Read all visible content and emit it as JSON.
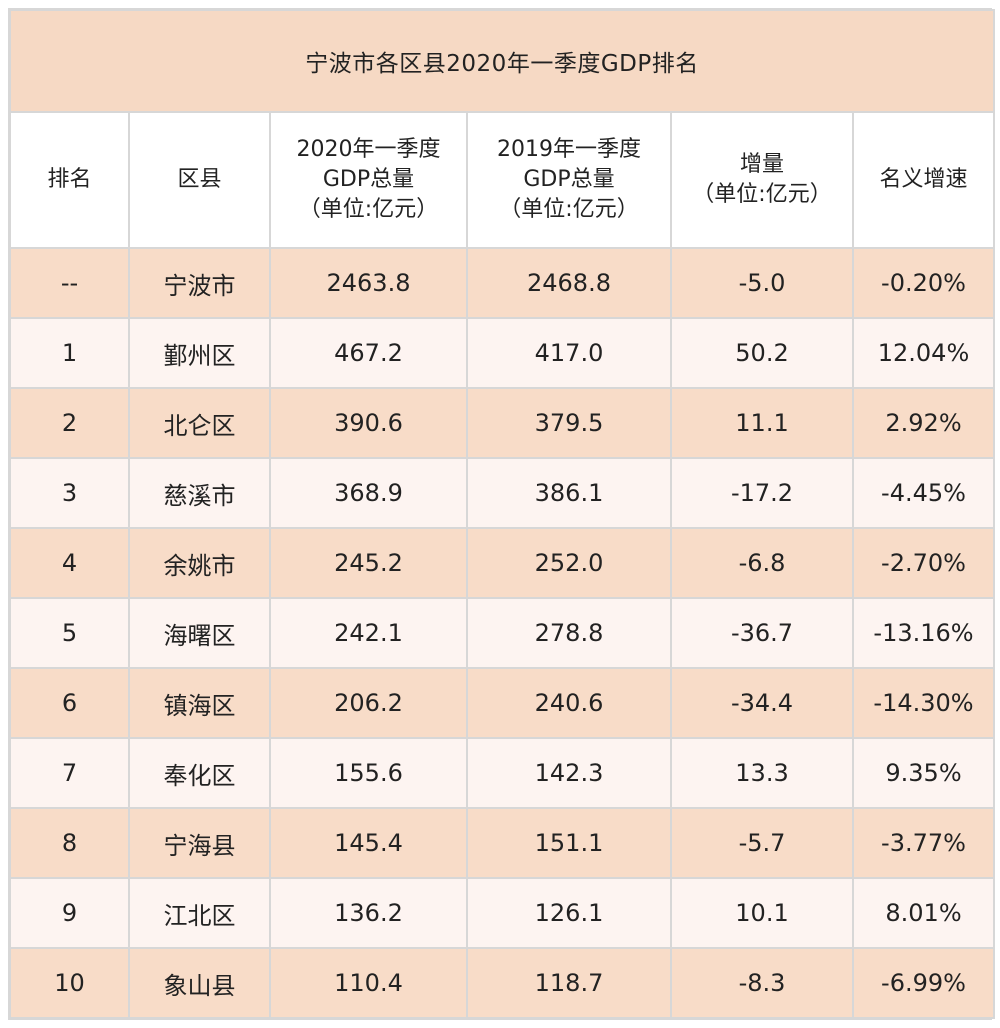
{
  "title": "宁波市各区县2020年一季度GDP排名",
  "headers": {
    "rank": "排名",
    "district": "区县",
    "gdp2020_line1": "2020年一季度",
    "gdp2020_line2": "GDP总量",
    "gdp2020_line3": "（单位:亿元）",
    "gdp2019_line1": "2019年一季度",
    "gdp2019_line2": "GDP总量",
    "gdp2019_line3": "（单位:亿元）",
    "increase_line1": "增量",
    "increase_line2": "（单位:亿元）",
    "growth": "名义增速"
  },
  "rows": [
    {
      "rank": "--",
      "district": "宁波市",
      "gdp2020": "2463.8",
      "gdp2019": "2468.8",
      "increase": "-5.0",
      "growth": "-0.20%"
    },
    {
      "rank": "1",
      "district": "鄞州区",
      "gdp2020": "467.2",
      "gdp2019": "417.0",
      "increase": "50.2",
      "growth": "12.04%"
    },
    {
      "rank": "2",
      "district": "北仑区",
      "gdp2020": "390.6",
      "gdp2019": "379.5",
      "increase": "11.1",
      "growth": "2.92%"
    },
    {
      "rank": "3",
      "district": "慈溪市",
      "gdp2020": "368.9",
      "gdp2019": "386.1",
      "increase": "-17.2",
      "growth": "-4.45%"
    },
    {
      "rank": "4",
      "district": "余姚市",
      "gdp2020": "245.2",
      "gdp2019": "252.0",
      "increase": "-6.8",
      "growth": "-2.70%"
    },
    {
      "rank": "5",
      "district": "海曙区",
      "gdp2020": "242.1",
      "gdp2019": "278.8",
      "increase": "-36.7",
      "growth": "-13.16%"
    },
    {
      "rank": "6",
      "district": "镇海区",
      "gdp2020": "206.2",
      "gdp2019": "240.6",
      "increase": "-34.4",
      "growth": "-14.30%"
    },
    {
      "rank": "7",
      "district": "奉化区",
      "gdp2020": "155.6",
      "gdp2019": "142.3",
      "increase": "13.3",
      "growth": "9.35%"
    },
    {
      "rank": "8",
      "district": "宁海县",
      "gdp2020": "145.4",
      "gdp2019": "151.1",
      "increase": "-5.7",
      "growth": "-3.77%"
    },
    {
      "rank": "9",
      "district": "江北区",
      "gdp2020": "136.2",
      "gdp2019": "126.1",
      "increase": "10.1",
      "growth": "8.01%"
    },
    {
      "rank": "10",
      "district": "象山县",
      "gdp2020": "110.4",
      "gdp2019": "118.7",
      "increase": "-8.3",
      "growth": "-6.99%"
    }
  ],
  "colors": {
    "title_background": "#f6d9c4",
    "peach_row": "#f8dcc8",
    "light_row": "#fdf4f1",
    "grid": "#d7d7d7"
  }
}
